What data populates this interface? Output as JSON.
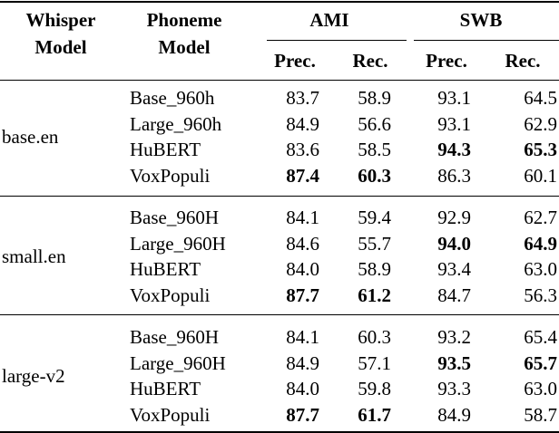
{
  "header": {
    "whisper": [
      "Whisper",
      "Model"
    ],
    "phoneme": [
      "Phoneme",
      "Model"
    ],
    "groups": [
      "AMI",
      "SWB"
    ],
    "metrics": [
      "Prec.",
      "Rec.",
      "Prec.",
      "Rec."
    ]
  },
  "table": {
    "groups": [
      {
        "whisper": "base.en",
        "rows": [
          {
            "phoneme": "Base_960h",
            "values": [
              "83.7",
              "58.9",
              "93.1",
              "64.5"
            ],
            "bold": [
              false,
              false,
              false,
              false
            ]
          },
          {
            "phoneme": "Large_960h",
            "values": [
              "84.9",
              "56.6",
              "93.1",
              "62.9"
            ],
            "bold": [
              false,
              false,
              false,
              false
            ]
          },
          {
            "phoneme": "HuBERT",
            "values": [
              "83.6",
              "58.5",
              "94.3",
              "65.3"
            ],
            "bold": [
              false,
              false,
              true,
              true
            ]
          },
          {
            "phoneme": "VoxPopuli",
            "values": [
              "87.4",
              "60.3",
              "86.3",
              "60.1"
            ],
            "bold": [
              true,
              true,
              false,
              false
            ]
          }
        ]
      },
      {
        "whisper": "small.en",
        "rows": [
          {
            "phoneme": "Base_960H",
            "values": [
              "84.1",
              "59.4",
              "92.9",
              "62.7"
            ],
            "bold": [
              false,
              false,
              false,
              false
            ]
          },
          {
            "phoneme": "Large_960H",
            "values": [
              "84.6",
              "55.7",
              "94.0",
              "64.9"
            ],
            "bold": [
              false,
              false,
              true,
              true
            ]
          },
          {
            "phoneme": "HuBERT",
            "values": [
              "84.0",
              "58.9",
              "93.4",
              "63.0"
            ],
            "bold": [
              false,
              false,
              false,
              false
            ]
          },
          {
            "phoneme": "VoxPopuli",
            "values": [
              "87.7",
              "61.2",
              "84.7",
              "56.3"
            ],
            "bold": [
              true,
              true,
              false,
              false
            ]
          }
        ]
      },
      {
        "whisper": "large-v2",
        "rows": [
          {
            "phoneme": "Base_960H",
            "values": [
              "84.1",
              "60.3",
              "93.2",
              "65.4"
            ],
            "bold": [
              false,
              false,
              false,
              false
            ]
          },
          {
            "phoneme": "Large_960H",
            "values": [
              "84.9",
              "57.1",
              "93.5",
              "65.7"
            ],
            "bold": [
              false,
              false,
              true,
              true
            ]
          },
          {
            "phoneme": "HuBERT",
            "values": [
              "84.0",
              "59.8",
              "93.3",
              "63.0"
            ],
            "bold": [
              false,
              false,
              false,
              false
            ]
          },
          {
            "phoneme": "VoxPopuli",
            "values": [
              "87.7",
              "61.7",
              "84.9",
              "58.7"
            ],
            "bold": [
              true,
              true,
              false,
              false
            ]
          }
        ]
      }
    ]
  }
}
